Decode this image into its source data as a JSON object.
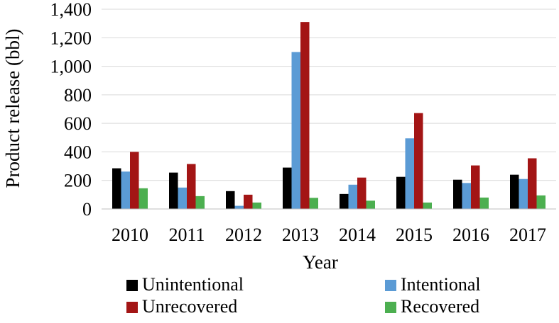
{
  "chart_data": {
    "type": "bar",
    "title": "",
    "xlabel": "Year",
    "ylabel": "Product release (bbl)",
    "ylim": [
      0,
      1400
    ],
    "yticks": [
      "0",
      "200",
      "400",
      "600",
      "800",
      "1,000",
      "1,200",
      "1,400"
    ],
    "categories": [
      "2010",
      "2011",
      "2012",
      "2013",
      "2014",
      "2015",
      "2016",
      "2017"
    ],
    "grid": true,
    "legend_position": "bottom",
    "series": [
      {
        "name": "Unintentional",
        "color": "#000000",
        "values": [
          285,
          255,
          125,
          290,
          105,
          225,
          205,
          240
        ]
      },
      {
        "name": "Intentional",
        "color": "#5b9bd5",
        "values": [
          262,
          150,
          22,
          1100,
          170,
          495,
          182,
          210
        ]
      },
      {
        "name": "Unrecovered",
        "color": "#a31515",
        "values": [
          400,
          315,
          100,
          1310,
          220,
          672,
          305,
          355
        ]
      },
      {
        "name": "Recovered",
        "color": "#4caf50",
        "values": [
          145,
          90,
          45,
          78,
          58,
          45,
          80,
          95
        ]
      }
    ]
  }
}
